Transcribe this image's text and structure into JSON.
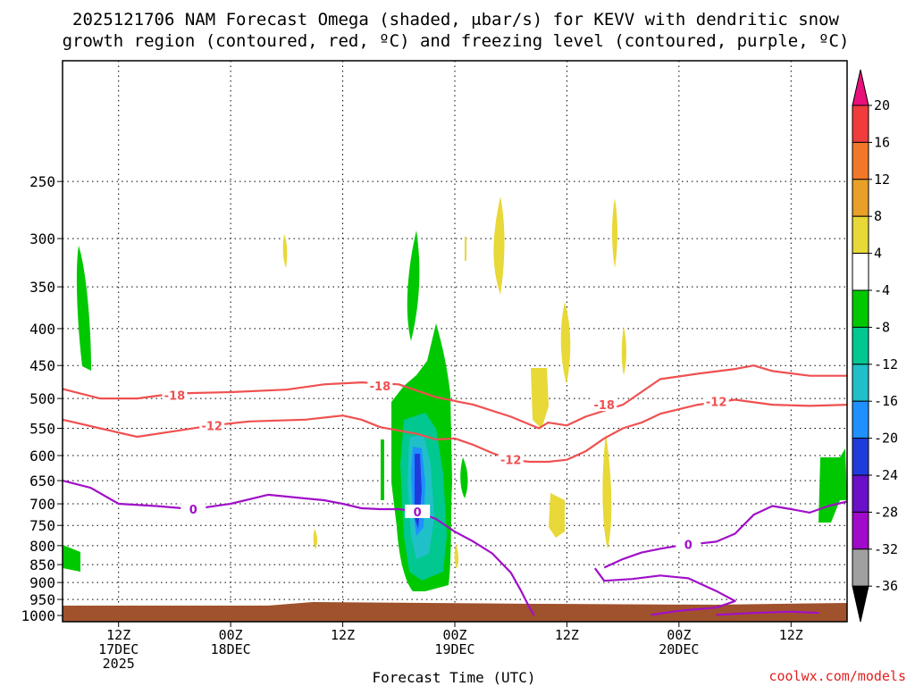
{
  "chart_data": {
    "type": "heatmap",
    "title_line1": "2025121706 NAM Forecast Omega (shaded, μbar/s) for KEVV with dendritic snow",
    "title_line2": "growth region (contoured, red, ºC) and freezing level (contoured, purple, ºC)",
    "xlabel": "Forecast Time (UTC)",
    "credit": "coolwx.com/models",
    "x_range_hours": [
      0,
      84
    ],
    "y_range_hpa": [
      1020,
      170
    ],
    "y_ticks": [
      250,
      300,
      350,
      400,
      450,
      500,
      550,
      600,
      650,
      700,
      750,
      800,
      850,
      900,
      950,
      1000
    ],
    "x_ticks": [
      {
        "hour": 6,
        "line1": "12Z",
        "line2": "17DEC",
        "line3": "2025"
      },
      {
        "hour": 18,
        "line1": "00Z",
        "line2": "18DEC",
        "line3": ""
      },
      {
        "hour": 30,
        "line1": "12Z",
        "line2": "",
        "line3": ""
      },
      {
        "hour": 42,
        "line1": "00Z",
        "line2": "19DEC",
        "line3": ""
      },
      {
        "hour": 54,
        "line1": "12Z",
        "line2": "",
        "line3": ""
      },
      {
        "hour": 66,
        "line1": "00Z",
        "line2": "20DEC",
        "line3": ""
      },
      {
        "hour": 78,
        "line1": "12Z",
        "line2": "",
        "line3": ""
      }
    ],
    "colorbar": {
      "labels": [
        "20",
        "16",
        "12",
        "8",
        "4",
        "-4",
        "-8",
        "-12",
        "-16",
        "-20",
        "-24",
        "-28",
        "-32",
        "-36"
      ],
      "colors": [
        "#e8107a",
        "#f03c3c",
        "#f07828",
        "#e8a028",
        "#e8d838",
        "#ffffff",
        "#00c800",
        "#00c890",
        "#20c0c8",
        "#1e90ff",
        "#1e3cdc",
        "#6a10c8",
        "#a00ac8",
        "#a0a0a0",
        "#000000"
      ]
    },
    "series": [
      {
        "name": "-18 C isotherm",
        "color": "#f05050",
        "label": "-18",
        "points": [
          [
            0,
            485
          ],
          [
            4,
            500
          ],
          [
            8,
            500
          ],
          [
            12,
            492
          ],
          [
            18,
            490
          ],
          [
            24,
            486
          ],
          [
            28,
            478
          ],
          [
            32,
            475
          ],
          [
            36,
            478
          ],
          [
            38,
            488
          ],
          [
            40,
            498
          ],
          [
            44,
            510
          ],
          [
            48,
            530
          ],
          [
            51,
            550
          ],
          [
            52,
            540
          ],
          [
            54,
            545
          ],
          [
            56,
            530
          ],
          [
            60,
            510
          ],
          [
            64,
            470
          ],
          [
            68,
            462
          ],
          [
            72,
            455
          ],
          [
            74,
            450
          ],
          [
            76,
            458
          ],
          [
            80,
            465
          ],
          [
            84,
            465
          ]
        ],
        "label_at": [
          [
            12,
            495
          ],
          [
            34,
            480
          ],
          [
            58,
            510
          ]
        ]
      },
      {
        "name": "-12 C isotherm",
        "color": "#f05050",
        "label": "-12",
        "points": [
          [
            0,
            535
          ],
          [
            4,
            550
          ],
          [
            8,
            565
          ],
          [
            12,
            555
          ],
          [
            16,
            545
          ],
          [
            20,
            538
          ],
          [
            26,
            535
          ],
          [
            30,
            528
          ],
          [
            32,
            535
          ],
          [
            34,
            548
          ],
          [
            38,
            560
          ],
          [
            40,
            570
          ],
          [
            42,
            568
          ],
          [
            44,
            580
          ],
          [
            46,
            595
          ],
          [
            48,
            608
          ],
          [
            50,
            612
          ],
          [
            52,
            612
          ],
          [
            54,
            608
          ],
          [
            56,
            592
          ],
          [
            58,
            568
          ],
          [
            60,
            550
          ],
          [
            62,
            540
          ],
          [
            64,
            525
          ],
          [
            68,
            510
          ],
          [
            72,
            502
          ],
          [
            76,
            510
          ],
          [
            80,
            512
          ],
          [
            84,
            510
          ]
        ],
        "label_at": [
          [
            16,
            545
          ],
          [
            48,
            608
          ],
          [
            70,
            505
          ]
        ]
      },
      {
        "name": "0 C freezing level",
        "color": "#a010c8",
        "label": "0",
        "points": [
          [
            0,
            650
          ],
          [
            3,
            665
          ],
          [
            6,
            700
          ],
          [
            10,
            705
          ],
          [
            14,
            712
          ],
          [
            18,
            700
          ],
          [
            22,
            680
          ],
          [
            26,
            688
          ],
          [
            28,
            692
          ],
          [
            30,
            700
          ],
          [
            32,
            710
          ],
          [
            34,
            712
          ],
          [
            36,
            712
          ],
          [
            38,
            718
          ],
          [
            40,
            735
          ],
          [
            42,
            765
          ],
          [
            44,
            790
          ],
          [
            46,
            820
          ],
          [
            48,
            872
          ],
          [
            49,
            920
          ],
          [
            50,
            975
          ],
          [
            50.5,
            1000
          ]
        ],
        "label_at": [
          [
            14,
            712
          ],
          [
            38,
            718
          ]
        ]
      },
      {
        "name": "0 C freezing level (late)",
        "color": "#a010c8",
        "label": "0",
        "points": [
          [
            58,
            858
          ],
          [
            60,
            835
          ],
          [
            62,
            818
          ],
          [
            64,
            808
          ],
          [
            66,
            800
          ],
          [
            68,
            795
          ],
          [
            70,
            790
          ],
          [
            72,
            770
          ],
          [
            74,
            725
          ],
          [
            76,
            705
          ],
          [
            78,
            712
          ],
          [
            80,
            720
          ],
          [
            82,
            705
          ],
          [
            84,
            695
          ]
        ],
        "label_at": [
          [
            67,
            797
          ]
        ]
      },
      {
        "name": "0 C closed contour",
        "color": "#a010c8",
        "label": "",
        "points": [
          [
            57,
            860
          ],
          [
            58,
            895
          ],
          [
            61,
            890
          ],
          [
            64,
            880
          ],
          [
            67,
            888
          ],
          [
            70,
            925
          ],
          [
            72,
            955
          ],
          [
            70,
            975
          ],
          [
            66,
            985
          ],
          [
            63,
            998
          ]
        ],
        "label_at": []
      },
      {
        "name": "0 C near-surface",
        "color": "#a010c8",
        "label": "",
        "points": [
          [
            70,
            998
          ],
          [
            74,
            992
          ],
          [
            78,
            988
          ],
          [
            81,
            992
          ]
        ],
        "label_at": []
      }
    ]
  }
}
